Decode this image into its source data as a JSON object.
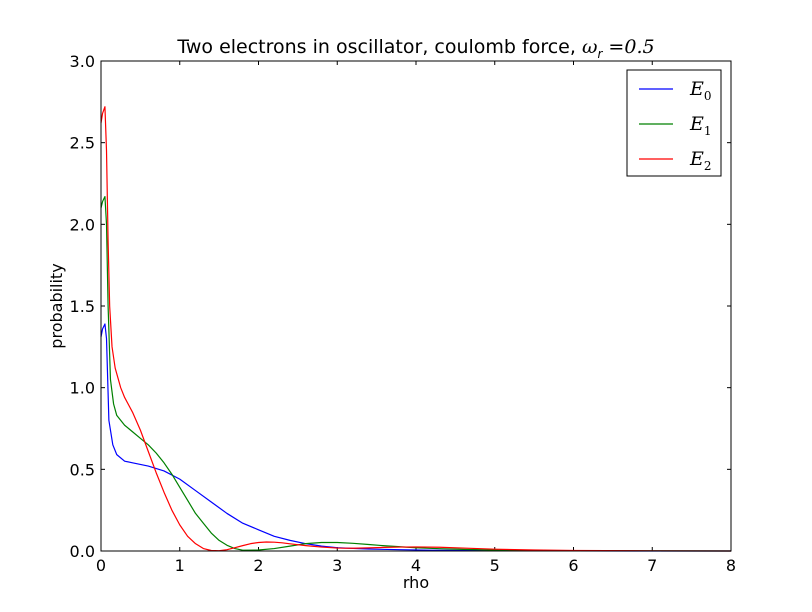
{
  "chart_data": {
    "type": "line",
    "title": "Two electrons in oscillator, coulomb force, ",
    "title_math": {
      "symbol": "ω",
      "subscript": "r",
      "equals": " =0.5"
    },
    "xlabel": "rho",
    "ylabel": "probability",
    "xlim": [
      0,
      8
    ],
    "ylim": [
      0,
      3.0
    ],
    "xticks": [
      0,
      1,
      2,
      3,
      4,
      5,
      6,
      7,
      8
    ],
    "xtick_labels": [
      "0",
      "1",
      "2",
      "3",
      "4",
      "5",
      "6",
      "7",
      "8"
    ],
    "yticks": [
      0,
      0.5,
      1.0,
      1.5,
      2.0,
      2.5,
      3.0
    ],
    "ytick_labels": [
      "0.0",
      "0.5",
      "1.0",
      "1.5",
      "2.0",
      "2.5",
      "3.0"
    ],
    "grid": false,
    "legend_position": "top-right",
    "series": [
      {
        "name": "E",
        "subscript": "0",
        "color": "#0000ff",
        "points": [
          [
            0.0,
            1.31
          ],
          [
            0.02,
            1.36
          ],
          [
            0.05,
            1.39
          ],
          [
            0.07,
            1.3
          ],
          [
            0.1,
            0.8
          ],
          [
            0.15,
            0.65
          ],
          [
            0.2,
            0.59
          ],
          [
            0.3,
            0.55
          ],
          [
            0.4,
            0.54
          ],
          [
            0.6,
            0.52
          ],
          [
            0.8,
            0.49
          ],
          [
            1.0,
            0.44
          ],
          [
            1.2,
            0.37
          ],
          [
            1.4,
            0.3
          ],
          [
            1.6,
            0.23
          ],
          [
            1.8,
            0.17
          ],
          [
            2.0,
            0.13
          ],
          [
            2.2,
            0.09
          ],
          [
            2.4,
            0.065
          ],
          [
            2.6,
            0.045
          ],
          [
            2.8,
            0.03
          ],
          [
            3.0,
            0.02
          ],
          [
            3.4,
            0.012
          ],
          [
            3.8,
            0.008
          ],
          [
            4.2,
            0.005
          ],
          [
            4.6,
            0.003
          ],
          [
            5.0,
            0.002
          ],
          [
            6.0,
            0.001
          ],
          [
            7.0,
            0.0
          ],
          [
            8.0,
            0.0
          ]
        ]
      },
      {
        "name": "E",
        "subscript": "1",
        "color": "#008000",
        "points": [
          [
            0.0,
            2.1
          ],
          [
            0.02,
            2.14
          ],
          [
            0.05,
            2.17
          ],
          [
            0.07,
            2.0
          ],
          [
            0.09,
            1.5
          ],
          [
            0.12,
            1.05
          ],
          [
            0.16,
            0.9
          ],
          [
            0.2,
            0.83
          ],
          [
            0.3,
            0.77
          ],
          [
            0.4,
            0.73
          ],
          [
            0.5,
            0.69
          ],
          [
            0.6,
            0.65
          ],
          [
            0.7,
            0.6
          ],
          [
            0.8,
            0.54
          ],
          [
            0.9,
            0.47
          ],
          [
            1.0,
            0.39
          ],
          [
            1.1,
            0.31
          ],
          [
            1.2,
            0.23
          ],
          [
            1.3,
            0.17
          ],
          [
            1.4,
            0.11
          ],
          [
            1.5,
            0.065
          ],
          [
            1.6,
            0.035
          ],
          [
            1.7,
            0.015
          ],
          [
            1.8,
            0.005
          ],
          [
            2.0,
            0.006
          ],
          [
            2.2,
            0.015
          ],
          [
            2.4,
            0.03
          ],
          [
            2.6,
            0.045
          ],
          [
            2.8,
            0.052
          ],
          [
            3.0,
            0.052
          ],
          [
            3.2,
            0.047
          ],
          [
            3.4,
            0.04
          ],
          [
            3.6,
            0.032
          ],
          [
            3.8,
            0.026
          ],
          [
            4.0,
            0.02
          ],
          [
            4.3,
            0.014
          ],
          [
            4.6,
            0.01
          ],
          [
            5.0,
            0.006
          ],
          [
            5.5,
            0.003
          ],
          [
            6.0,
            0.002
          ],
          [
            7.0,
            0.001
          ],
          [
            8.0,
            0.0
          ]
        ]
      },
      {
        "name": "E",
        "subscript": "2",
        "color": "#ff0000",
        "points": [
          [
            0.0,
            2.62
          ],
          [
            0.02,
            2.68
          ],
          [
            0.05,
            2.72
          ],
          [
            0.07,
            2.45
          ],
          [
            0.09,
            1.9
          ],
          [
            0.11,
            1.5
          ],
          [
            0.14,
            1.25
          ],
          [
            0.18,
            1.12
          ],
          [
            0.25,
            1.0
          ],
          [
            0.3,
            0.94
          ],
          [
            0.4,
            0.85
          ],
          [
            0.5,
            0.74
          ],
          [
            0.6,
            0.61
          ],
          [
            0.7,
            0.48
          ],
          [
            0.8,
            0.36
          ],
          [
            0.9,
            0.25
          ],
          [
            1.0,
            0.16
          ],
          [
            1.1,
            0.09
          ],
          [
            1.2,
            0.045
          ],
          [
            1.3,
            0.015
          ],
          [
            1.4,
            0.003
          ],
          [
            1.5,
            0.002
          ],
          [
            1.6,
            0.008
          ],
          [
            1.7,
            0.02
          ],
          [
            1.8,
            0.033
          ],
          [
            1.9,
            0.045
          ],
          [
            2.0,
            0.052
          ],
          [
            2.1,
            0.055
          ],
          [
            2.2,
            0.054
          ],
          [
            2.3,
            0.05
          ],
          [
            2.4,
            0.044
          ],
          [
            2.6,
            0.033
          ],
          [
            2.8,
            0.024
          ],
          [
            3.0,
            0.018
          ],
          [
            3.2,
            0.017
          ],
          [
            3.4,
            0.019
          ],
          [
            3.6,
            0.022
          ],
          [
            3.8,
            0.024
          ],
          [
            4.0,
            0.025
          ],
          [
            4.3,
            0.023
          ],
          [
            4.6,
            0.018
          ],
          [
            5.0,
            0.011
          ],
          [
            5.5,
            0.006
          ],
          [
            6.0,
            0.003
          ],
          [
            7.0,
            0.001
          ],
          [
            8.0,
            0.0
          ]
        ]
      }
    ]
  }
}
